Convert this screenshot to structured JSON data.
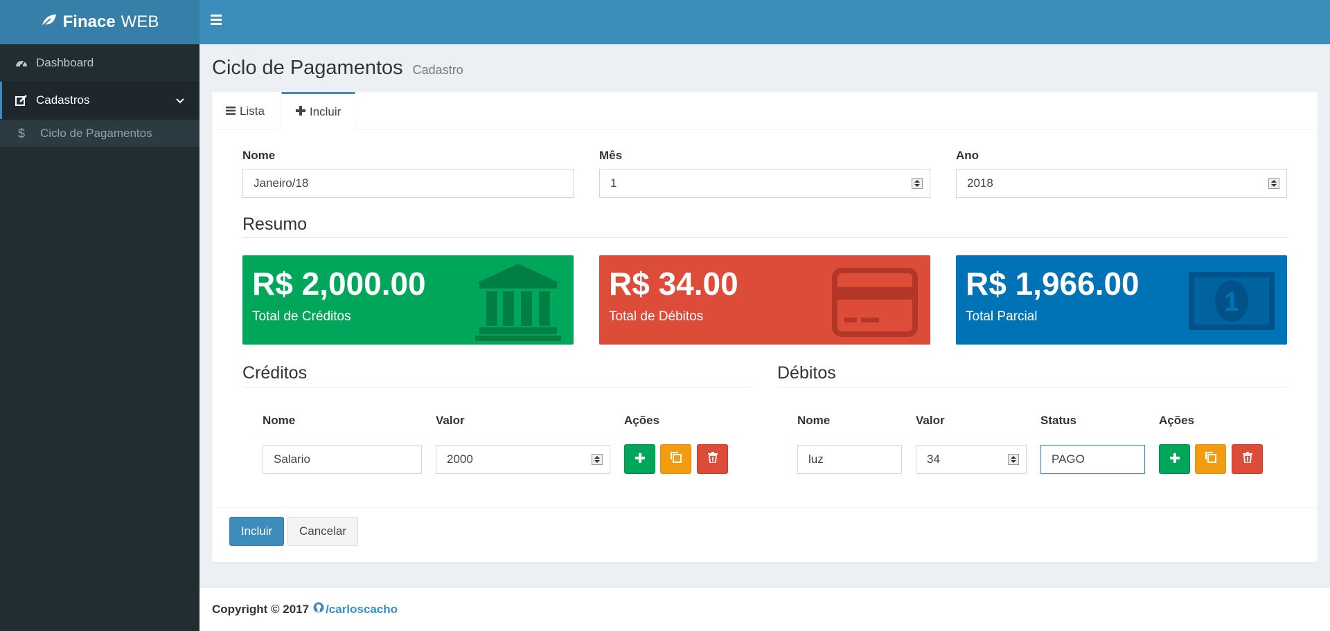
{
  "app": {
    "brand_bold": "Finace",
    "brand_light": "WEB"
  },
  "sidebar": {
    "items": [
      {
        "label": "Dashboard",
        "icon": "dashboard-icon"
      },
      {
        "label": "Cadastros",
        "icon": "edit-icon",
        "expanded": true
      }
    ],
    "subitems": [
      {
        "label": "Ciclo de Pagamentos",
        "icon": "dollar-icon"
      }
    ]
  },
  "page": {
    "title": "Ciclo de Pagamentos",
    "subtitle": "Cadastro"
  },
  "tabs": [
    {
      "label": "Lista",
      "icon": "list-icon"
    },
    {
      "label": "Incluir",
      "icon": "plus-icon",
      "active": true
    }
  ],
  "form": {
    "nome": {
      "label": "Nome",
      "value": "Janeiro/18"
    },
    "mes": {
      "label": "Mês",
      "value": "1"
    },
    "ano": {
      "label": "Ano",
      "value": "2018"
    }
  },
  "resumo": {
    "title": "Resumo",
    "cards": [
      {
        "amount": "R$ 2,000.00",
        "caption": "Total de Créditos",
        "color": "#00a65a",
        "icon": "bank-icon"
      },
      {
        "amount": "R$ 34.00",
        "caption": "Total de Débitos",
        "color": "#dd4b39",
        "icon": "credit-card-icon"
      },
      {
        "amount": "R$ 1,966.00",
        "caption": "Total Parcial",
        "color": "#0073b7",
        "icon": "money-icon"
      }
    ]
  },
  "creditos": {
    "title": "Créditos",
    "headers": [
      "Nome",
      "Valor",
      "Ações"
    ],
    "rows": [
      {
        "nome": "Salario",
        "valor": "2000"
      }
    ]
  },
  "debitos": {
    "title": "Débitos",
    "headers": [
      "Nome",
      "Valor",
      "Status",
      "Ações"
    ],
    "rows": [
      {
        "nome": "luz",
        "valor": "34",
        "status": "PAGO"
      }
    ]
  },
  "actions": {
    "incluir": "Incluir",
    "cancelar": "Cancelar"
  },
  "footer": {
    "copyright": "Copyright © 2017",
    "link": "/carloscacho"
  },
  "colors": {
    "primary": "#3c8dbc",
    "sidebar": "#222d32",
    "success": "#00a65a",
    "warning": "#f39c12",
    "danger": "#dd4b39"
  }
}
